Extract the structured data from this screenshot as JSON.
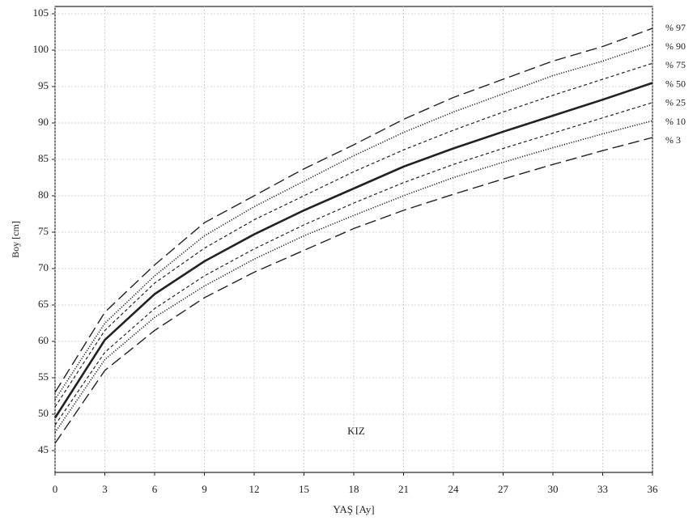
{
  "chart_data": {
    "type": "line",
    "annotation": "KIZ",
    "xlabel": "YAŞ [Ay]",
    "ylabel": "Boy [cm]",
    "x": [
      0,
      3,
      6,
      9,
      12,
      15,
      18,
      21,
      24,
      27,
      30,
      33,
      36
    ],
    "series": [
      {
        "name": "% 97",
        "color": "#222222",
        "style": "long-dash",
        "values": [
          53,
          64,
          70.5,
          76.3,
          80,
          83.7,
          87,
          90.5,
          93.5,
          96,
          98.5,
          100.5,
          103
        ]
      },
      {
        "name": "% 90",
        "color": "#222222",
        "style": "dotted",
        "values": [
          52,
          62.5,
          69,
          74.5,
          78.5,
          82,
          85.5,
          88.7,
          91.5,
          94,
          96.5,
          98.5,
          100.8
        ]
      },
      {
        "name": "% 75",
        "color": "#222222",
        "style": "short-dash",
        "values": [
          51,
          61.5,
          68,
          72.8,
          76.7,
          80,
          83.3,
          86.3,
          89,
          91.5,
          93.8,
          96,
          98.2
        ]
      },
      {
        "name": "% 50",
        "color": "#222222",
        "style": "solid",
        "values": [
          49.5,
          60.2,
          66.5,
          71,
          74.7,
          78,
          81,
          84,
          86.5,
          88.8,
          91,
          93.2,
          95.5
        ]
      },
      {
        "name": "% 25",
        "color": "#222222",
        "style": "short-dash",
        "values": [
          48.5,
          58.5,
          64.5,
          69,
          72.7,
          76,
          79,
          81.8,
          84.3,
          86.5,
          88.6,
          90.7,
          92.8
        ]
      },
      {
        "name": "% 10",
        "color": "#222222",
        "style": "dotted",
        "values": [
          47.5,
          57.5,
          63.3,
          67.6,
          71.3,
          74.5,
          77.3,
          80,
          82.5,
          84.6,
          86.6,
          88.5,
          90.3
        ]
      },
      {
        "name": "% 3",
        "color": "#222222",
        "style": "long-dash",
        "values": [
          46,
          56,
          61.5,
          66,
          69.5,
          72.5,
          75.5,
          78,
          80.2,
          82.3,
          84.3,
          86.2,
          88
        ]
      }
    ],
    "xlim": [
      0,
      36
    ],
    "xticks": [
      0,
      3,
      6,
      9,
      12,
      15,
      18,
      21,
      24,
      27,
      30,
      33,
      36
    ],
    "ylim": [
      42,
      106
    ],
    "yticks": [
      45,
      50,
      55,
      60,
      65,
      70,
      75,
      80,
      85,
      90,
      95,
      100,
      105
    ],
    "grid": true
  }
}
